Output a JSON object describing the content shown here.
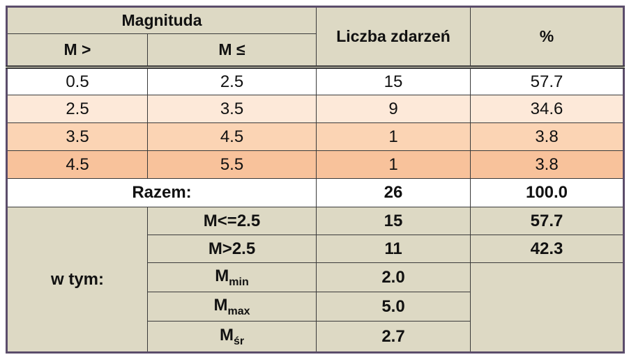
{
  "header": {
    "magnitude": "Magnituda",
    "m_gt": "M >",
    "m_le": "M ≤",
    "count": "Liczba zdarzeń",
    "percent": "%"
  },
  "rows": [
    [
      "0.5",
      "2.5",
      "15",
      "57.7"
    ],
    [
      "2.5",
      "3.5",
      "9",
      "34.6"
    ],
    [
      "3.5",
      "4.5",
      "1",
      "3.8"
    ],
    [
      "4.5",
      "5.5",
      "1",
      "3.8"
    ]
  ],
  "total": {
    "label": "Razem:",
    "count": "26",
    "percent": "100.0"
  },
  "breakdown": {
    "label": "w tym:",
    "rows": [
      {
        "label": "M<=2.5",
        "count": "15",
        "percent": "57.7"
      },
      {
        "label": "M>2.5",
        "count": "11",
        "percent": "42.3"
      },
      {
        "label": {
          "base": "M",
          "sub": "min"
        },
        "count": "2.0"
      },
      {
        "label": {
          "base": "M",
          "sub": "max"
        },
        "count": "5.0"
      },
      {
        "label": {
          "base": "M",
          "sub": "śr"
        },
        "count": "2.7"
      }
    ]
  }
}
